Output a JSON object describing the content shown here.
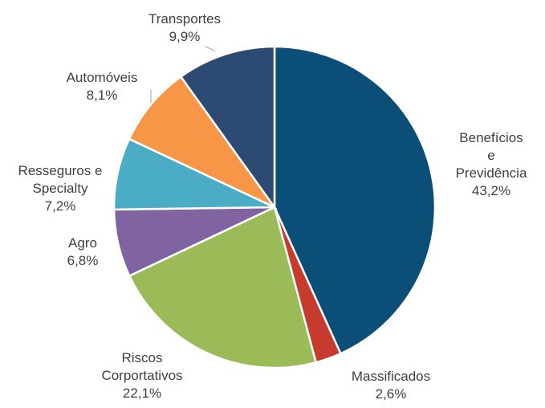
{
  "chart_data": {
    "type": "pie",
    "categories": [
      "Benefícios e\nPrevidência",
      "Massificados",
      "Riscos\nCorportativos",
      "Agro",
      "Resseguros e\nSpecialty",
      "Automóveis",
      "Transportes"
    ],
    "values": [
      43.2,
      2.6,
      22.1,
      6.8,
      7.2,
      8.1,
      9.9
    ],
    "value_labels": [
      "43,2%",
      "2,6%",
      "22,1%",
      "6,8%",
      "7,2%",
      "8,1%",
      "9,9%"
    ],
    "colors": [
      "#0b4f78",
      "#c73a2e",
      "#9bbb59",
      "#8064a2",
      "#4bacc6",
      "#f79646",
      "#2c4a73"
    ]
  }
}
